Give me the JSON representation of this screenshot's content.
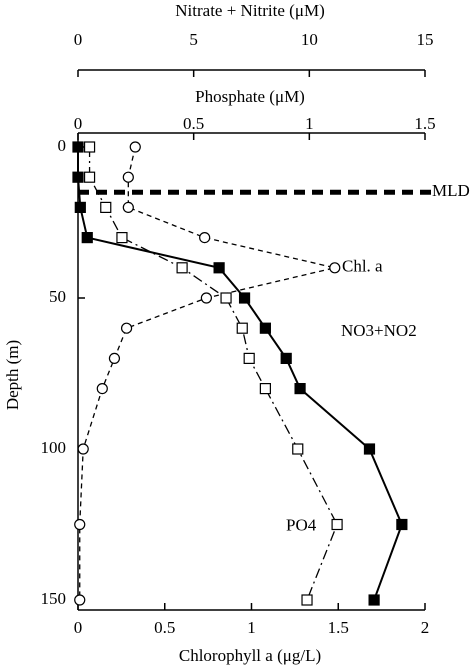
{
  "chart_data": {
    "type": "profile",
    "xlabel": "Chlorophyll a (μg/L)",
    "x2label": "Nitrate + Nitrite (μM)",
    "x3label": "Phosphate (μM)",
    "ylabel": "Depth (m)",
    "y": [
      0,
      10,
      20,
      30,
      40,
      50,
      60,
      70,
      80,
      100,
      125,
      150
    ],
    "ylim": [
      0,
      150
    ],
    "yticks": [
      0,
      50,
      100,
      150
    ],
    "y_inverted": true,
    "xlim": [
      0,
      2
    ],
    "xticks": [
      0,
      0.5,
      1,
      1.5,
      2
    ],
    "x2lim": [
      0,
      15
    ],
    "x2ticks": [
      0,
      5,
      10,
      15
    ],
    "x3lim": [
      0,
      1.5
    ],
    "x3ticks": [
      0,
      0.5,
      1,
      1.5
    ],
    "series": [
      {
        "name": "Chl. a",
        "axis": "x",
        "color": "#000",
        "marker": "circle-open",
        "line_style": "dashed",
        "values": [
          0.33,
          0.29,
          0.29,
          0.73,
          1.48,
          0.74,
          0.28,
          0.21,
          0.14,
          0.03,
          0.01,
          0.01
        ]
      },
      {
        "name": "NO3+NO2",
        "axis": "x2",
        "color": "#000",
        "marker": "square-filled",
        "line_style": "solid",
        "values": [
          0,
          0,
          0.1,
          0.4,
          6.1,
          7.2,
          8.1,
          9.0,
          9.6,
          12.6,
          14.0,
          12.8
        ]
      },
      {
        "name": "PO4",
        "axis": "x3",
        "color": "#000",
        "marker": "square-open",
        "line_style": "dashdot",
        "values": [
          0.05,
          0.05,
          0.12,
          0.19,
          0.45,
          0.64,
          0.71,
          0.74,
          0.81,
          0.95,
          1.12,
          0.99
        ]
      }
    ],
    "mld": {
      "label": "MLD",
      "depth": 15
    }
  }
}
